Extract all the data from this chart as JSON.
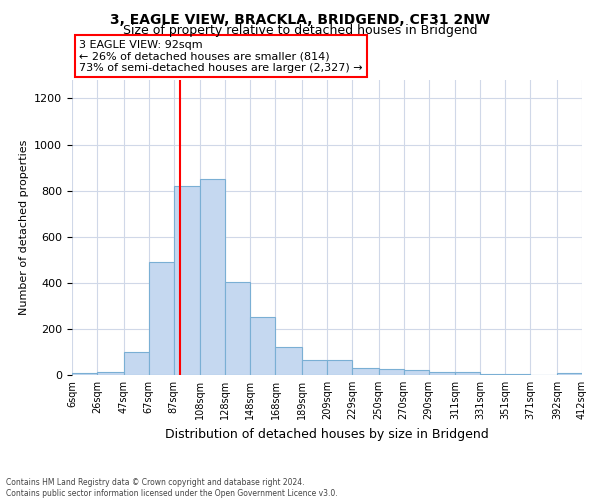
{
  "title": "3, EAGLE VIEW, BRACKLA, BRIDGEND, CF31 2NW",
  "subtitle": "Size of property relative to detached houses in Bridgend",
  "xlabel": "Distribution of detached houses by size in Bridgend",
  "ylabel": "Number of detached properties",
  "property_size": 92,
  "property_label": "3 EAGLE VIEW: 92sqm",
  "annotation_line1": "← 26% of detached houses are smaller (814)",
  "annotation_line2": "73% of semi-detached houses are larger (2,327) →",
  "footer_line1": "Contains HM Land Registry data © Crown copyright and database right 2024.",
  "footer_line2": "Contains public sector information licensed under the Open Government Licence v3.0.",
  "bar_color": "#c5d8f0",
  "bar_edge_color": "#7aafd4",
  "vline_color": "red",
  "annotation_box_color": "red",
  "background_color": "#ffffff",
  "bin_edges": [
    6,
    26,
    47,
    67,
    87,
    108,
    128,
    148,
    168,
    189,
    209,
    229,
    250,
    270,
    290,
    311,
    331,
    351,
    371,
    392,
    412
  ],
  "bar_heights": [
    8,
    14,
    100,
    490,
    820,
    850,
    405,
    250,
    120,
    65,
    65,
    30,
    25,
    20,
    13,
    12,
    5,
    5,
    0,
    10
  ],
  "ylim": [
    0,
    1280
  ],
  "yticks": [
    0,
    200,
    400,
    600,
    800,
    1000,
    1200
  ],
  "grid_color": "#d0d8e8",
  "title_fontsize": 10,
  "subtitle_fontsize": 9,
  "ylabel_fontsize": 8,
  "xlabel_fontsize": 9,
  "tick_fontsize": 7,
  "footer_fontsize": 5.5
}
